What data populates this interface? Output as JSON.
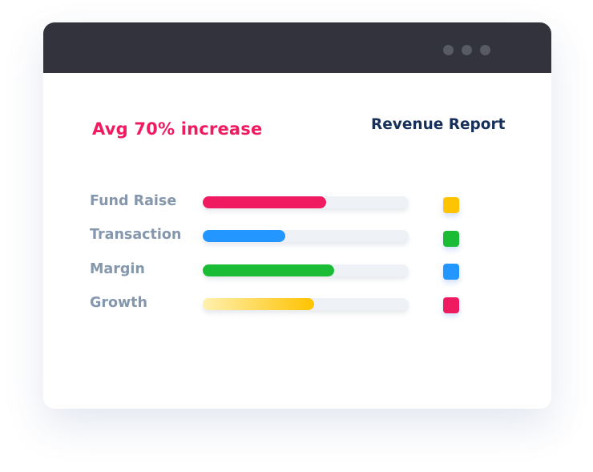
{
  "window": {
    "controls": [
      "dot",
      "dot",
      "dot"
    ]
  },
  "headline": "Avg 70% increase",
  "report_title": "Revenue Report",
  "metrics": [
    {
      "label": "Fund Raise",
      "percent": 60,
      "color": "#ef1a5f",
      "swatch_color": "#ffc300"
    },
    {
      "label": "Transaction",
      "percent": 40,
      "color": "#2496ff",
      "swatch_color": "#1abc35"
    },
    {
      "label": "Margin",
      "percent": 64,
      "color": "#1abc35",
      "swatch_color": "#2496ff"
    },
    {
      "label": "Growth",
      "percent": 54,
      "color": "linear-gradient(90deg,#fff0b0,#ffc300)",
      "swatch_color": "#ef1a5f"
    }
  ]
}
